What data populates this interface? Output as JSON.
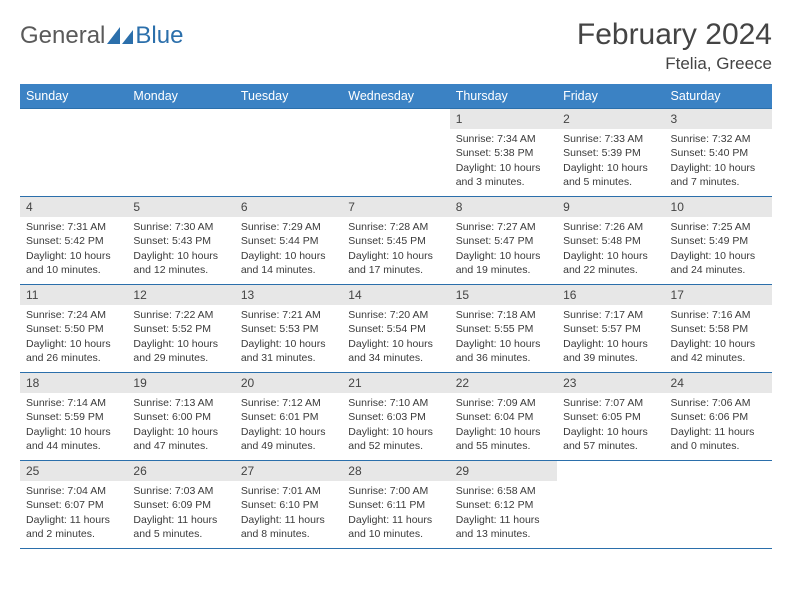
{
  "brand": {
    "word1": "General",
    "word2": "Blue"
  },
  "title": "February 2024",
  "location": "Ftelia, Greece",
  "colors": {
    "header_bg": "#3b82c4",
    "header_text": "#ffffff",
    "rule": "#2b6fab",
    "daynum_bg": "#e7e7e7",
    "body_text": "#3a3a3a",
    "brand_gray": "#5a5a5a",
    "brand_blue": "#2b6fab"
  },
  "weekdays": [
    "Sunday",
    "Monday",
    "Tuesday",
    "Wednesday",
    "Thursday",
    "Friday",
    "Saturday"
  ],
  "first_weekday_index": 4,
  "days": [
    {
      "n": "1",
      "sunrise": "7:34 AM",
      "sunset": "5:38 PM",
      "daylight": "10 hours and 3 minutes."
    },
    {
      "n": "2",
      "sunrise": "7:33 AM",
      "sunset": "5:39 PM",
      "daylight": "10 hours and 5 minutes."
    },
    {
      "n": "3",
      "sunrise": "7:32 AM",
      "sunset": "5:40 PM",
      "daylight": "10 hours and 7 minutes."
    },
    {
      "n": "4",
      "sunrise": "7:31 AM",
      "sunset": "5:42 PM",
      "daylight": "10 hours and 10 minutes."
    },
    {
      "n": "5",
      "sunrise": "7:30 AM",
      "sunset": "5:43 PM",
      "daylight": "10 hours and 12 minutes."
    },
    {
      "n": "6",
      "sunrise": "7:29 AM",
      "sunset": "5:44 PM",
      "daylight": "10 hours and 14 minutes."
    },
    {
      "n": "7",
      "sunrise": "7:28 AM",
      "sunset": "5:45 PM",
      "daylight": "10 hours and 17 minutes."
    },
    {
      "n": "8",
      "sunrise": "7:27 AM",
      "sunset": "5:47 PM",
      "daylight": "10 hours and 19 minutes."
    },
    {
      "n": "9",
      "sunrise": "7:26 AM",
      "sunset": "5:48 PM",
      "daylight": "10 hours and 22 minutes."
    },
    {
      "n": "10",
      "sunrise": "7:25 AM",
      "sunset": "5:49 PM",
      "daylight": "10 hours and 24 minutes."
    },
    {
      "n": "11",
      "sunrise": "7:24 AM",
      "sunset": "5:50 PM",
      "daylight": "10 hours and 26 minutes."
    },
    {
      "n": "12",
      "sunrise": "7:22 AM",
      "sunset": "5:52 PM",
      "daylight": "10 hours and 29 minutes."
    },
    {
      "n": "13",
      "sunrise": "7:21 AM",
      "sunset": "5:53 PM",
      "daylight": "10 hours and 31 minutes."
    },
    {
      "n": "14",
      "sunrise": "7:20 AM",
      "sunset": "5:54 PM",
      "daylight": "10 hours and 34 minutes."
    },
    {
      "n": "15",
      "sunrise": "7:18 AM",
      "sunset": "5:55 PM",
      "daylight": "10 hours and 36 minutes."
    },
    {
      "n": "16",
      "sunrise": "7:17 AM",
      "sunset": "5:57 PM",
      "daylight": "10 hours and 39 minutes."
    },
    {
      "n": "17",
      "sunrise": "7:16 AM",
      "sunset": "5:58 PM",
      "daylight": "10 hours and 42 minutes."
    },
    {
      "n": "18",
      "sunrise": "7:14 AM",
      "sunset": "5:59 PM",
      "daylight": "10 hours and 44 minutes."
    },
    {
      "n": "19",
      "sunrise": "7:13 AM",
      "sunset": "6:00 PM",
      "daylight": "10 hours and 47 minutes."
    },
    {
      "n": "20",
      "sunrise": "7:12 AM",
      "sunset": "6:01 PM",
      "daylight": "10 hours and 49 minutes."
    },
    {
      "n": "21",
      "sunrise": "7:10 AM",
      "sunset": "6:03 PM",
      "daylight": "10 hours and 52 minutes."
    },
    {
      "n": "22",
      "sunrise": "7:09 AM",
      "sunset": "6:04 PM",
      "daylight": "10 hours and 55 minutes."
    },
    {
      "n": "23",
      "sunrise": "7:07 AM",
      "sunset": "6:05 PM",
      "daylight": "10 hours and 57 minutes."
    },
    {
      "n": "24",
      "sunrise": "7:06 AM",
      "sunset": "6:06 PM",
      "daylight": "11 hours and 0 minutes."
    },
    {
      "n": "25",
      "sunrise": "7:04 AM",
      "sunset": "6:07 PM",
      "daylight": "11 hours and 2 minutes."
    },
    {
      "n": "26",
      "sunrise": "7:03 AM",
      "sunset": "6:09 PM",
      "daylight": "11 hours and 5 minutes."
    },
    {
      "n": "27",
      "sunrise": "7:01 AM",
      "sunset": "6:10 PM",
      "daylight": "11 hours and 8 minutes."
    },
    {
      "n": "28",
      "sunrise": "7:00 AM",
      "sunset": "6:11 PM",
      "daylight": "11 hours and 10 minutes."
    },
    {
      "n": "29",
      "sunrise": "6:58 AM",
      "sunset": "6:12 PM",
      "daylight": "11 hours and 13 minutes."
    }
  ],
  "labels": {
    "sunrise": "Sunrise:",
    "sunset": "Sunset:",
    "daylight": "Daylight:"
  }
}
